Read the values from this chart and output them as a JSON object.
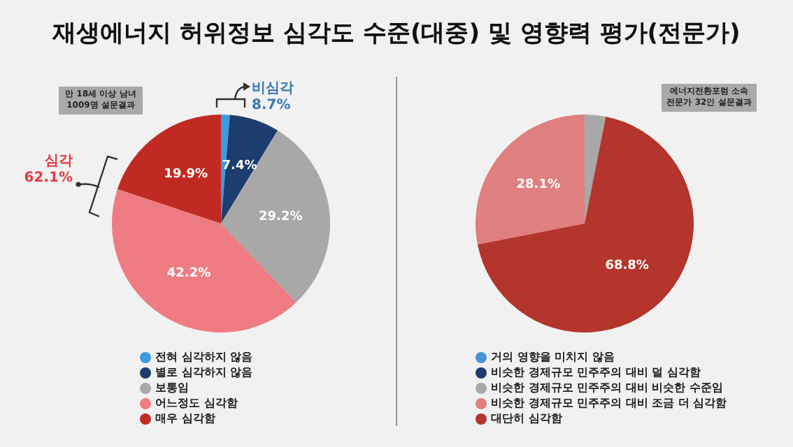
{
  "chart_data": [
    {
      "type": "pie",
      "title": "재생에너지 허위정보 심각도 수준(대중) 및 영향력 평가(전문가)",
      "categories": [
        "전혀 심각하지 않음",
        "별로 심각하지 않음",
        "보통임",
        "어느정도 심각함",
        "매우 심각함"
      ],
      "values": [
        1.3,
        7.4,
        29.2,
        42.2,
        19.9
      ],
      "value_labels": [
        null,
        "7.4%",
        "29.2%",
        "42.2%",
        "19.9%"
      ],
      "colors": [
        "#3d9be0",
        "#1c3d6e",
        "#a8a8a8",
        "#ee7c82",
        "#c12a22"
      ],
      "annotations": [
        "만 18세 이상 남녀\n1009명 설문결과",
        "비심각\n8.7%",
        "심각\n62.1%"
      ],
      "legend": "bottom"
    },
    {
      "type": "pie",
      "categories": [
        "거의 영향을 미치지 않음",
        "비슷한 경제규모 민주주의 대비 덜 심각함",
        "비슷한 경제규모 민주주의 대비 비슷한 수준임",
        "비슷한 경제규모 민주주의 대비 조금 더 심각함",
        "대단히 심각함"
      ],
      "values": [
        0,
        0,
        3.1,
        28.1,
        68.8
      ],
      "value_labels": [
        null,
        null,
        null,
        "28.1%",
        "68.8%"
      ],
      "colors": [
        "#4a94d6",
        "#1c3d6e",
        "#a8a8a8",
        "#df7f7f",
        "#b3352b"
      ],
      "annotations": [
        "에너지전환포럼 소속\n전문가 32인 설문결과"
      ],
      "legend": "bottom"
    }
  ]
}
